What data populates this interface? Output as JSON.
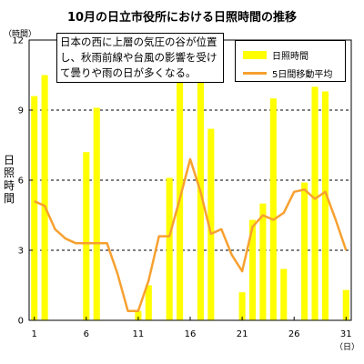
{
  "chart_data": {
    "type": "bar",
    "title": "10月の日立市役所における日照時間の推移",
    "y_unit": "（時間）",
    "x_unit": "（日）",
    "ylabel": "日照時間",
    "ylim": [
      0,
      12
    ],
    "yticks": [
      0,
      3,
      6,
      9,
      12
    ],
    "xticks": [
      1,
      6,
      11,
      16,
      21,
      26,
      31
    ],
    "grid": "horizontal-dashed",
    "legend_position": "top-right",
    "annotation": "日本の西に上層の気圧の谷が位置し、秋雨前線や台風の影響を受けて曇りや雨の日が多くなる。",
    "days": [
      1,
      2,
      3,
      4,
      5,
      6,
      7,
      8,
      9,
      10,
      11,
      12,
      13,
      14,
      15,
      16,
      17,
      18,
      19,
      20,
      21,
      22,
      23,
      24,
      25,
      26,
      27,
      28,
      29,
      30,
      31
    ],
    "series": [
      {
        "name": "日照時間",
        "kind": "bar",
        "color": "#ffff00",
        "values": [
          9.6,
          10.5,
          0,
          0,
          0,
          7.2,
          9.1,
          0,
          0,
          0,
          0.4,
          1.5,
          0,
          6.1,
          10.2,
          0,
          10.2,
          8.2,
          0,
          0,
          1.2,
          4.3,
          5.0,
          9.5,
          2.2,
          0,
          5.9,
          10.0,
          9.8,
          0,
          1.3
        ]
      },
      {
        "name": "5日間移動平均",
        "kind": "line",
        "color": "#f7a030",
        "values": [
          5.1,
          4.9,
          3.9,
          3.5,
          3.3,
          3.3,
          3.3,
          3.3,
          2.0,
          0.4,
          0.4,
          1.7,
          3.6,
          3.6,
          5.2,
          6.9,
          5.5,
          3.7,
          3.9,
          2.8,
          2.1,
          4.0,
          4.5,
          4.3,
          4.6,
          5.5,
          5.6,
          5.2,
          5.5,
          4.3,
          3.0
        ]
      }
    ]
  }
}
